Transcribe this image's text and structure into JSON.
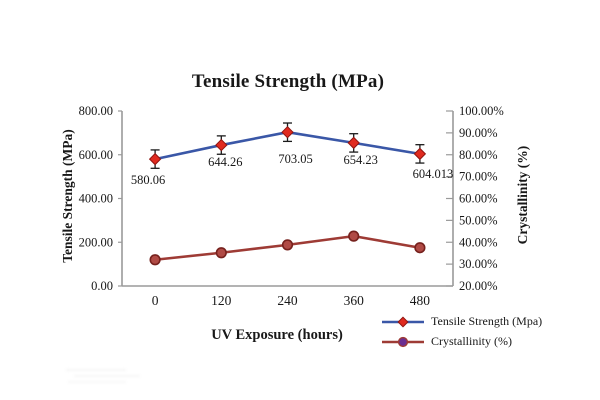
{
  "title": "Tensile Strength (MPa)",
  "axes": {
    "left": {
      "title": "Tensile Strength (MPa)",
      "ticks": [
        {
          "label": "800.00",
          "value": 800
        },
        {
          "label": "600.00",
          "value": 600
        },
        {
          "label": "400.00",
          "value": 400
        },
        {
          "label": "200.00",
          "value": 200
        },
        {
          "label": "0.00",
          "value": 0
        }
      ]
    },
    "right": {
      "title": "Crystallinity (%)",
      "ticks": [
        {
          "label": "100.00%",
          "value": 100
        },
        {
          "label": "90.00%",
          "value": 90
        },
        {
          "label": "80.00%",
          "value": 80
        },
        {
          "label": "70.00%",
          "value": 70
        },
        {
          "label": "60.00%",
          "value": 60
        },
        {
          "label": "50.00%",
          "value": 50
        },
        {
          "label": "40.00%",
          "value": 40
        },
        {
          "label": "30.00%",
          "value": 30
        },
        {
          "label": "20.00%",
          "value": 20
        }
      ]
    },
    "x": {
      "title": "UV Exposure (hours)",
      "tick_labels": [
        "0",
        "120",
        "240",
        "360",
        "480"
      ]
    }
  },
  "chart_data": {
    "type": "line",
    "title": "Tensile Strength (MPa)",
    "xlabel": "UV Exposure (hours)",
    "ylabel_left": "Tensile Strength (MPa)",
    "ylabel_right": "Crystallinity (%)",
    "categories": [
      0,
      120,
      240,
      360,
      480
    ],
    "ylim_left": [
      0,
      800
    ],
    "ylim_right": [
      20,
      100
    ],
    "grid": false,
    "legend_position": "bottom-right",
    "axis_color": "#9a9a9a",
    "series": [
      {
        "name": "Tensile Strength (Mpa)",
        "axis": "left",
        "values": [
          580.06,
          644.26,
          703.05,
          654.23,
          604.013
        ],
        "data_labels": [
          "580.06",
          "644.26",
          "703.05",
          "654.23",
          "604.013"
        ],
        "error_bar": 42,
        "error_color": "#1a1a1a",
        "line_color": "#3a57a7",
        "marker": "diamond",
        "marker_fill": "#e02a1f",
        "marker_stroke": "#8f1410"
      },
      {
        "name": "Crystallinity (%)",
        "axis": "right",
        "values": [
          32,
          35.2,
          38.8,
          42.8,
          37.5
        ],
        "data_labels": null,
        "error_bar": 0,
        "line_color": "#9e3b35",
        "marker": "circle",
        "marker_fill": "#b04a45",
        "marker_stroke": "#76211d",
        "legend_marker_fill": "#6a2d91"
      }
    ]
  },
  "legend": {
    "items": [
      {
        "label": "Tensile Strength (Mpa)"
      },
      {
        "label": "Crystallinity (%)"
      }
    ]
  }
}
